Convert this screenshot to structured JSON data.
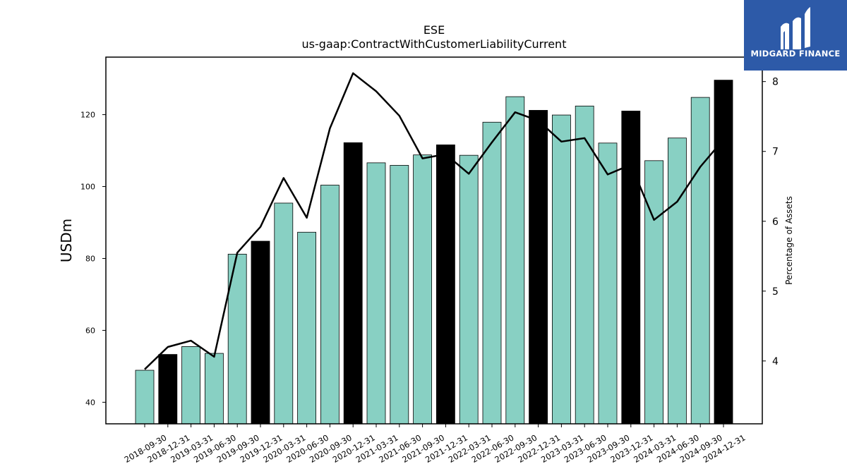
{
  "chart_data": {
    "type": "bar",
    "title": "ESE",
    "subtitle": "us-gaap:ContractWithCustomerLiabilityCurrent",
    "ylabel": "USDm",
    "y2label": "Percentage of Assets",
    "ylim": [
      34,
      136
    ],
    "y2lim": [
      3.1,
      8.35
    ],
    "yticks": [
      40,
      60,
      80,
      100,
      120
    ],
    "y2ticks": [
      4,
      5,
      6,
      7,
      8
    ],
    "categories": [
      "2018-09-30",
      "2018-12-31",
      "2019-03-31",
      "2019-06-30",
      "2019-09-30",
      "2019-12-31",
      "2020-03-31",
      "2020-06-30",
      "2020-09-30",
      "2020-12-31",
      "2021-03-31",
      "2021-06-30",
      "2021-09-30",
      "2021-12-31",
      "2022-03-31",
      "2022-06-30",
      "2022-09-30",
      "2022-12-31",
      "2023-03-31",
      "2023-06-30",
      "2023-09-30",
      "2023-12-31",
      "2024-03-31",
      "2024-06-30",
      "2024-09-30",
      "2024-12-31"
    ],
    "series": [
      {
        "axis": "left",
        "kind": "bar",
        "values": [
          48.9,
          53.3,
          55.5,
          53.6,
          81.2,
          84.8,
          95.4,
          87.3,
          100.4,
          112.2,
          106.6,
          105.9,
          108.8,
          111.6,
          108.7,
          117.9,
          125.0,
          121.2,
          119.9,
          122.4,
          112.1,
          121.0,
          107.2,
          113.5,
          124.8,
          129.6
        ],
        "colors": [
          "#88d0c3",
          "#000000",
          "#88d0c3",
          "#88d0c3",
          "#88d0c3",
          "#000000",
          "#88d0c3",
          "#88d0c3",
          "#88d0c3",
          "#000000",
          "#88d0c3",
          "#88d0c3",
          "#88d0c3",
          "#000000",
          "#88d0c3",
          "#88d0c3",
          "#88d0c3",
          "#000000",
          "#88d0c3",
          "#88d0c3",
          "#88d0c3",
          "#000000",
          "#88d0c3",
          "#88d0c3",
          "#88d0c3",
          "#000000"
        ]
      },
      {
        "axis": "right",
        "kind": "line",
        "color": "#000000",
        "values": [
          3.88,
          4.2,
          4.29,
          4.06,
          5.55,
          5.92,
          6.62,
          6.05,
          7.33,
          8.12,
          7.86,
          7.51,
          6.9,
          6.96,
          6.68,
          7.13,
          7.56,
          7.44,
          7.14,
          7.19,
          6.67,
          6.81,
          6.02,
          6.28,
          6.78,
          7.17
        ]
      }
    ],
    "grid": false,
    "legend": "none"
  },
  "logo": {
    "text": "MIDGARD FINANCE"
  }
}
